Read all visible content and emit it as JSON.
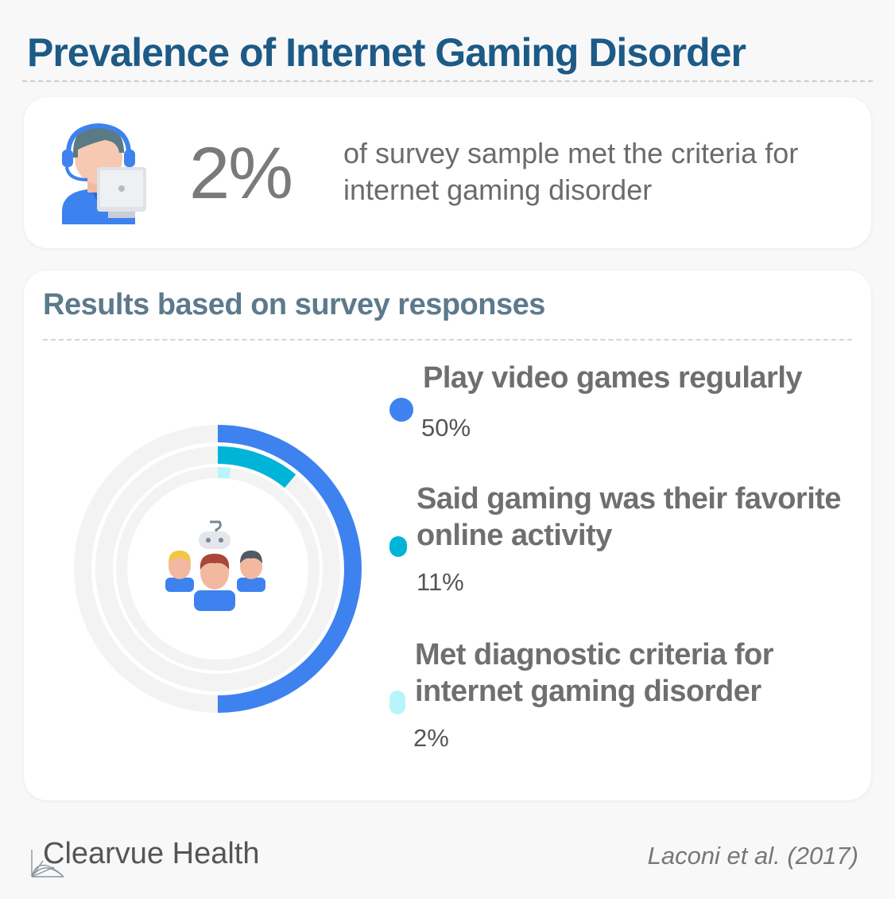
{
  "title": "Prevalence of Internet Gaming Disorder",
  "highlight": {
    "value": "2%",
    "caption": "of survey sample met the criteria for internet gaming disorder",
    "icon": "headset-agent-icon"
  },
  "section_title": "Results based on survey responses",
  "center_icon": "gamers-group-icon",
  "chart_data": {
    "type": "radial-bar",
    "title": "Results based on survey responses",
    "max": 100,
    "series": [
      {
        "name": "Play video games regularly",
        "value": 50,
        "label": "50%",
        "color": "#3d82ef"
      },
      {
        "name": "Said gaming was their favorite online activity",
        "value": 11,
        "label": "11%",
        "color": "#00b4d8"
      },
      {
        "name": "Met diagnostic criteria for internet gaming disorder",
        "value": 2,
        "label": "2%",
        "color": "#b8f5fb"
      }
    ],
    "track_color": "#f3f3f4",
    "legend_position": "right"
  },
  "legend": [
    {
      "label": "Play video games regularly",
      "value": "50%"
    },
    {
      "label": "Said gaming was their favorite online activity",
      "value": "11%"
    },
    {
      "label": "Met diagnostic criteria for internet gaming disorder",
      "value": "2%"
    }
  ],
  "footer": {
    "brand": "Clearvue Health",
    "citation": "Laconi et al. (2017)"
  }
}
